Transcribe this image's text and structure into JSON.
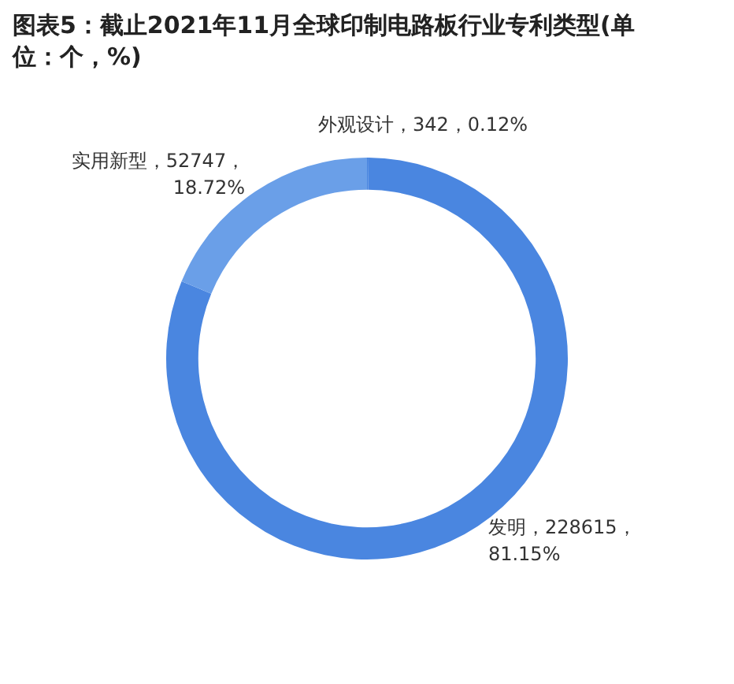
{
  "chart_data": {
    "type": "donut",
    "title": "图表5：截止2021年11月全球印制电路板行业专利类型(单位：个，%)",
    "categories": [
      "外观设计",
      "发明",
      "实用新型"
    ],
    "values": [
      342,
      228615,
      52747
    ],
    "colors": [
      "#4a86e0",
      "#4a86e0",
      "#6a9fe8"
    ],
    "value_labels": [
      "342，0.12%",
      "228615，81.15%",
      "52747，18.72%"
    ],
    "legend": false
  }
}
